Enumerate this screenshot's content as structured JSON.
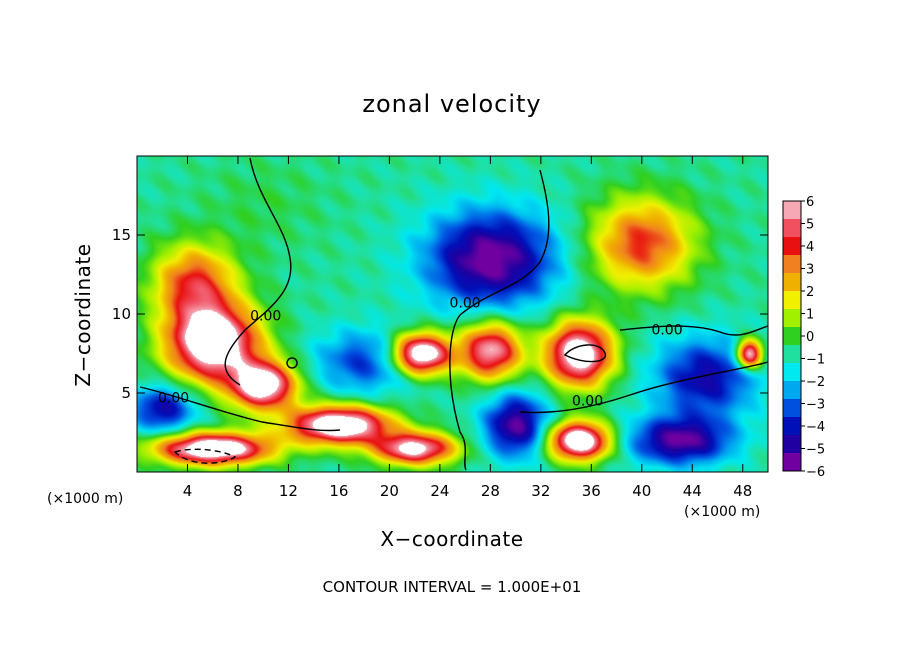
{
  "chart_data": {
    "type": "heatmap",
    "title": "zonal velocity",
    "xlabel": "X−coordinate",
    "ylabel": "Z−coordinate",
    "x_unit_left": "(×1000 m)",
    "x_unit_right": "(×1000 m)",
    "footer": "CONTOUR INTERVAL = 1.000E+01",
    "xlim": [
      0,
      50
    ],
    "ylim": [
      0,
      20
    ],
    "x_ticks": [
      4,
      8,
      12,
      16,
      20,
      24,
      28,
      32,
      36,
      40,
      44,
      48
    ],
    "y_ticks": [
      5,
      10,
      15
    ],
    "colorbar": {
      "ticks": [
        "6",
        "5",
        "4",
        "3",
        "2",
        "1",
        "0",
        "−1",
        "−2",
        "−3",
        "−4",
        "−5",
        "−6"
      ],
      "range": [
        -6,
        6
      ],
      "colors": [
        "#f6a8b4",
        "#f05060",
        "#e81010",
        "#f08020",
        "#f0b000",
        "#f0f000",
        "#a0f000",
        "#30d020",
        "#20e0a0",
        "#00e8f0",
        "#00a8f0",
        "#0050e0",
        "#0010b8",
        "#2000a0",
        "#7000a0"
      ],
      "above_max_color": "#ffffff"
    },
    "contour_labels": [
      {
        "text": "0.00",
        "x": 10.2,
        "z": 9.6
      },
      {
        "text": "0.00",
        "x": 2.9,
        "z": 4.4
      },
      {
        "text": "0.00",
        "x": 26.0,
        "z": 10.4
      },
      {
        "text": "0.00",
        "x": 35.7,
        "z": 4.2
      },
      {
        "text": "0.00",
        "x": 42.0,
        "z": 8.7
      }
    ],
    "field_features": [
      {
        "x": 4.5,
        "z": 12.0,
        "value": 5.0,
        "sx": 3.2,
        "sz": 2.4
      },
      {
        "x": 6.0,
        "z": 8.2,
        "value": 9.0,
        "sx": 3.6,
        "sz": 2.4
      },
      {
        "x": 10.0,
        "z": 5.5,
        "value": 8.0,
        "sx": 2.6,
        "sz": 1.5
      },
      {
        "x": 16.0,
        "z": 3.0,
        "value": 9.0,
        "sx": 4.0,
        "sz": 1.2
      },
      {
        "x": 22.0,
        "z": 1.5,
        "value": 7.5,
        "sx": 3.2,
        "sz": 1.0
      },
      {
        "x": 40.0,
        "z": 14.5,
        "value": 5.0,
        "sx": 4.0,
        "sz": 2.8
      },
      {
        "x": 35.0,
        "z": 7.5,
        "value": 8.5,
        "sx": 2.6,
        "sz": 2.0
      },
      {
        "x": 28.0,
        "z": 7.7,
        "value": 7.0,
        "sx": 2.4,
        "sz": 1.8
      },
      {
        "x": 35.0,
        "z": 2.0,
        "value": 9.0,
        "sx": 2.4,
        "sz": 1.2
      },
      {
        "x": 28.0,
        "z": 13.5,
        "value": -5.5,
        "sx": 5.0,
        "sz": 3.0
      },
      {
        "x": 22.5,
        "z": 7.5,
        "value": 9.0,
        "sx": 2.3,
        "sz": 1.3
      },
      {
        "x": 6.0,
        "z": 1.5,
        "value": 9.0,
        "sx": 4.5,
        "sz": 1.0
      },
      {
        "x": 2.0,
        "z": 4.0,
        "value": -4.0,
        "sx": 2.5,
        "sz": 1.5
      },
      {
        "x": 30.0,
        "z": 3.0,
        "value": -5.0,
        "sx": 2.5,
        "sz": 2.0
      },
      {
        "x": 45.0,
        "z": 6.0,
        "value": -4.0,
        "sx": 4.0,
        "sz": 2.5
      },
      {
        "x": 48.5,
        "z": 7.5,
        "value": 8.0,
        "sx": 1.0,
        "sz": 0.9
      },
      {
        "x": 43.0,
        "z": 2.0,
        "value": -5.0,
        "sx": 4.0,
        "sz": 1.5
      },
      {
        "x": 18.0,
        "z": 7.0,
        "value": -3.0,
        "sx": 4.0,
        "sz": 2.0
      },
      {
        "x": 10.0,
        "z": 17.0,
        "value": 0.5,
        "sx": 5.0,
        "sz": 3.0
      }
    ]
  }
}
